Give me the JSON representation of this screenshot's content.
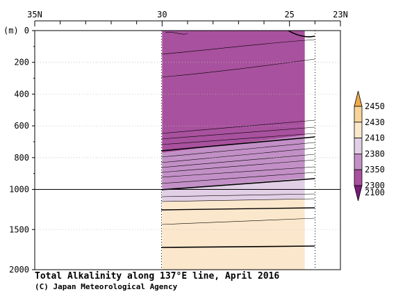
{
  "chart_data": {
    "type": "heatmap",
    "title": "Total Alkalinity along 137°E line, April 2016",
    "credit": "(C) Japan Meteorological Agency",
    "y_unit_label": "(m)",
    "x_axis": {
      "unit": "degrees N",
      "range": [
        35,
        23
      ],
      "ticks": [
        {
          "value": 35,
          "label": "35N"
        },
        {
          "value": 30,
          "label": "30"
        },
        {
          "value": 25,
          "label": "25"
        },
        {
          "value": 23,
          "label": "23N"
        }
      ]
    },
    "y_axis": {
      "unit": "depth (m)",
      "upper_range": [
        0,
        1000
      ],
      "lower_range": [
        1000,
        2000
      ],
      "ticks_upper": [
        0,
        200,
        400,
        600,
        800,
        1000
      ],
      "ticks_lower": [
        1500,
        2000
      ]
    },
    "data_extent_lat": [
      30,
      24.4
    ],
    "colorbar": {
      "levels": [
        2100,
        2300,
        2350,
        2380,
        2410,
        2430,
        2450
      ],
      "labels": [
        "2100",
        "2300",
        "2350",
        "2380",
        "2410",
        "2430",
        "2450"
      ],
      "colors": [
        "#7a1a7a",
        "#a8519e",
        "#c290c6",
        "#e1cfe6",
        "#fbe8cc",
        "#f8d49b",
        "#f0a94a"
      ]
    },
    "bands": [
      {
        "range": "2100-2300",
        "color": "#a8519e",
        "top_lat30_m": 0,
        "top_lat24_m": 0,
        "bottom_lat30_m": 770,
        "bottom_lat24_m": 660
      },
      {
        "range": "2300-2350",
        "color": "#c290c6",
        "top_lat30_m": 770,
        "top_lat24_m": 660,
        "bottom_lat30_m": 1000,
        "bottom_lat24_m": 930
      },
      {
        "range": "2350-2380",
        "color": "#e1cfe6",
        "top_lat30_m": 1000,
        "top_lat24_m": 930,
        "bottom_lat30_m": 1150,
        "bottom_lat24_m": 1120
      },
      {
        "range": "2380-2410",
        "color": "#fbe8cc",
        "top_lat30_m": 1150,
        "top_lat24_m": 1120,
        "bottom_lat30_m": 2000,
        "bottom_lat24_m": 2000
      }
    ]
  }
}
